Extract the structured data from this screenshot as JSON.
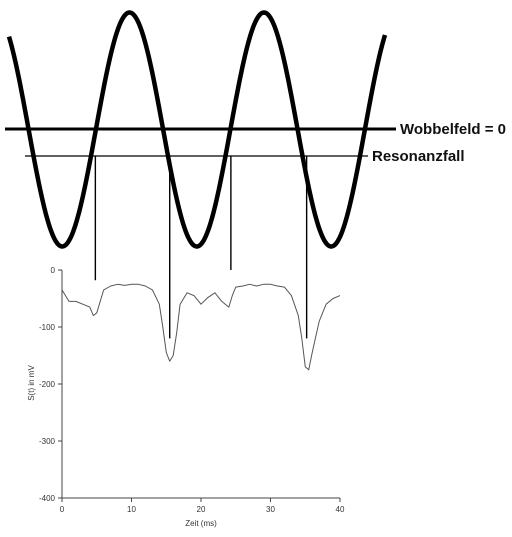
{
  "labels": {
    "zero_field": "Wobbelfeld = 0",
    "resonance": "Resonanzfall"
  },
  "sweep": {
    "description_shape": "sinusoidal sweep field, 3 periods visible",
    "line_color": "#000000"
  },
  "chart_data": {
    "type": "line",
    "title": "",
    "xlabel": "Zeit (ms)",
    "ylabel": "S(t) in mV",
    "xlim": [
      0,
      40
    ],
    "ylim": [
      -400,
      0
    ],
    "xticks": [
      0,
      10,
      20,
      30,
      40
    ],
    "yticks": [
      0,
      -100,
      -200,
      -300,
      -400
    ],
    "grid": false,
    "series": [
      {
        "name": "",
        "color": "#555555",
        "x": [
          0,
          1,
          2,
          3,
          4,
          4.5,
          5,
          5.5,
          6,
          7,
          8,
          9,
          10,
          11,
          12,
          13,
          14,
          14.5,
          15,
          15.5,
          16,
          16.5,
          17,
          18,
          19,
          20,
          21,
          22,
          23,
          24,
          24.5,
          25,
          26,
          27,
          28,
          29,
          30,
          31,
          32,
          33,
          34,
          34.5,
          35,
          35.5,
          36,
          37,
          38,
          39,
          40
        ],
        "y": [
          -35,
          -55,
          -55,
          -60,
          -65,
          -80,
          -75,
          -55,
          -35,
          -28,
          -25,
          -27,
          -25,
          -25,
          -28,
          -35,
          -60,
          -100,
          -145,
          -160,
          -150,
          -110,
          -60,
          -40,
          -45,
          -60,
          -48,
          -40,
          -55,
          -65,
          -45,
          -30,
          -28,
          -25,
          -28,
          -25,
          -25,
          -28,
          -30,
          -45,
          -80,
          -120,
          -170,
          -175,
          -145,
          -90,
          -60,
          -50,
          -45
        ]
      }
    ],
    "markers": [
      {
        "x": 4.8,
        "top_y": -18
      },
      {
        "x": 15.5,
        "top_y": -120
      },
      {
        "x": 24.3,
        "top_y": 0
      },
      {
        "x": 35.2,
        "top_y": -120
      }
    ]
  }
}
